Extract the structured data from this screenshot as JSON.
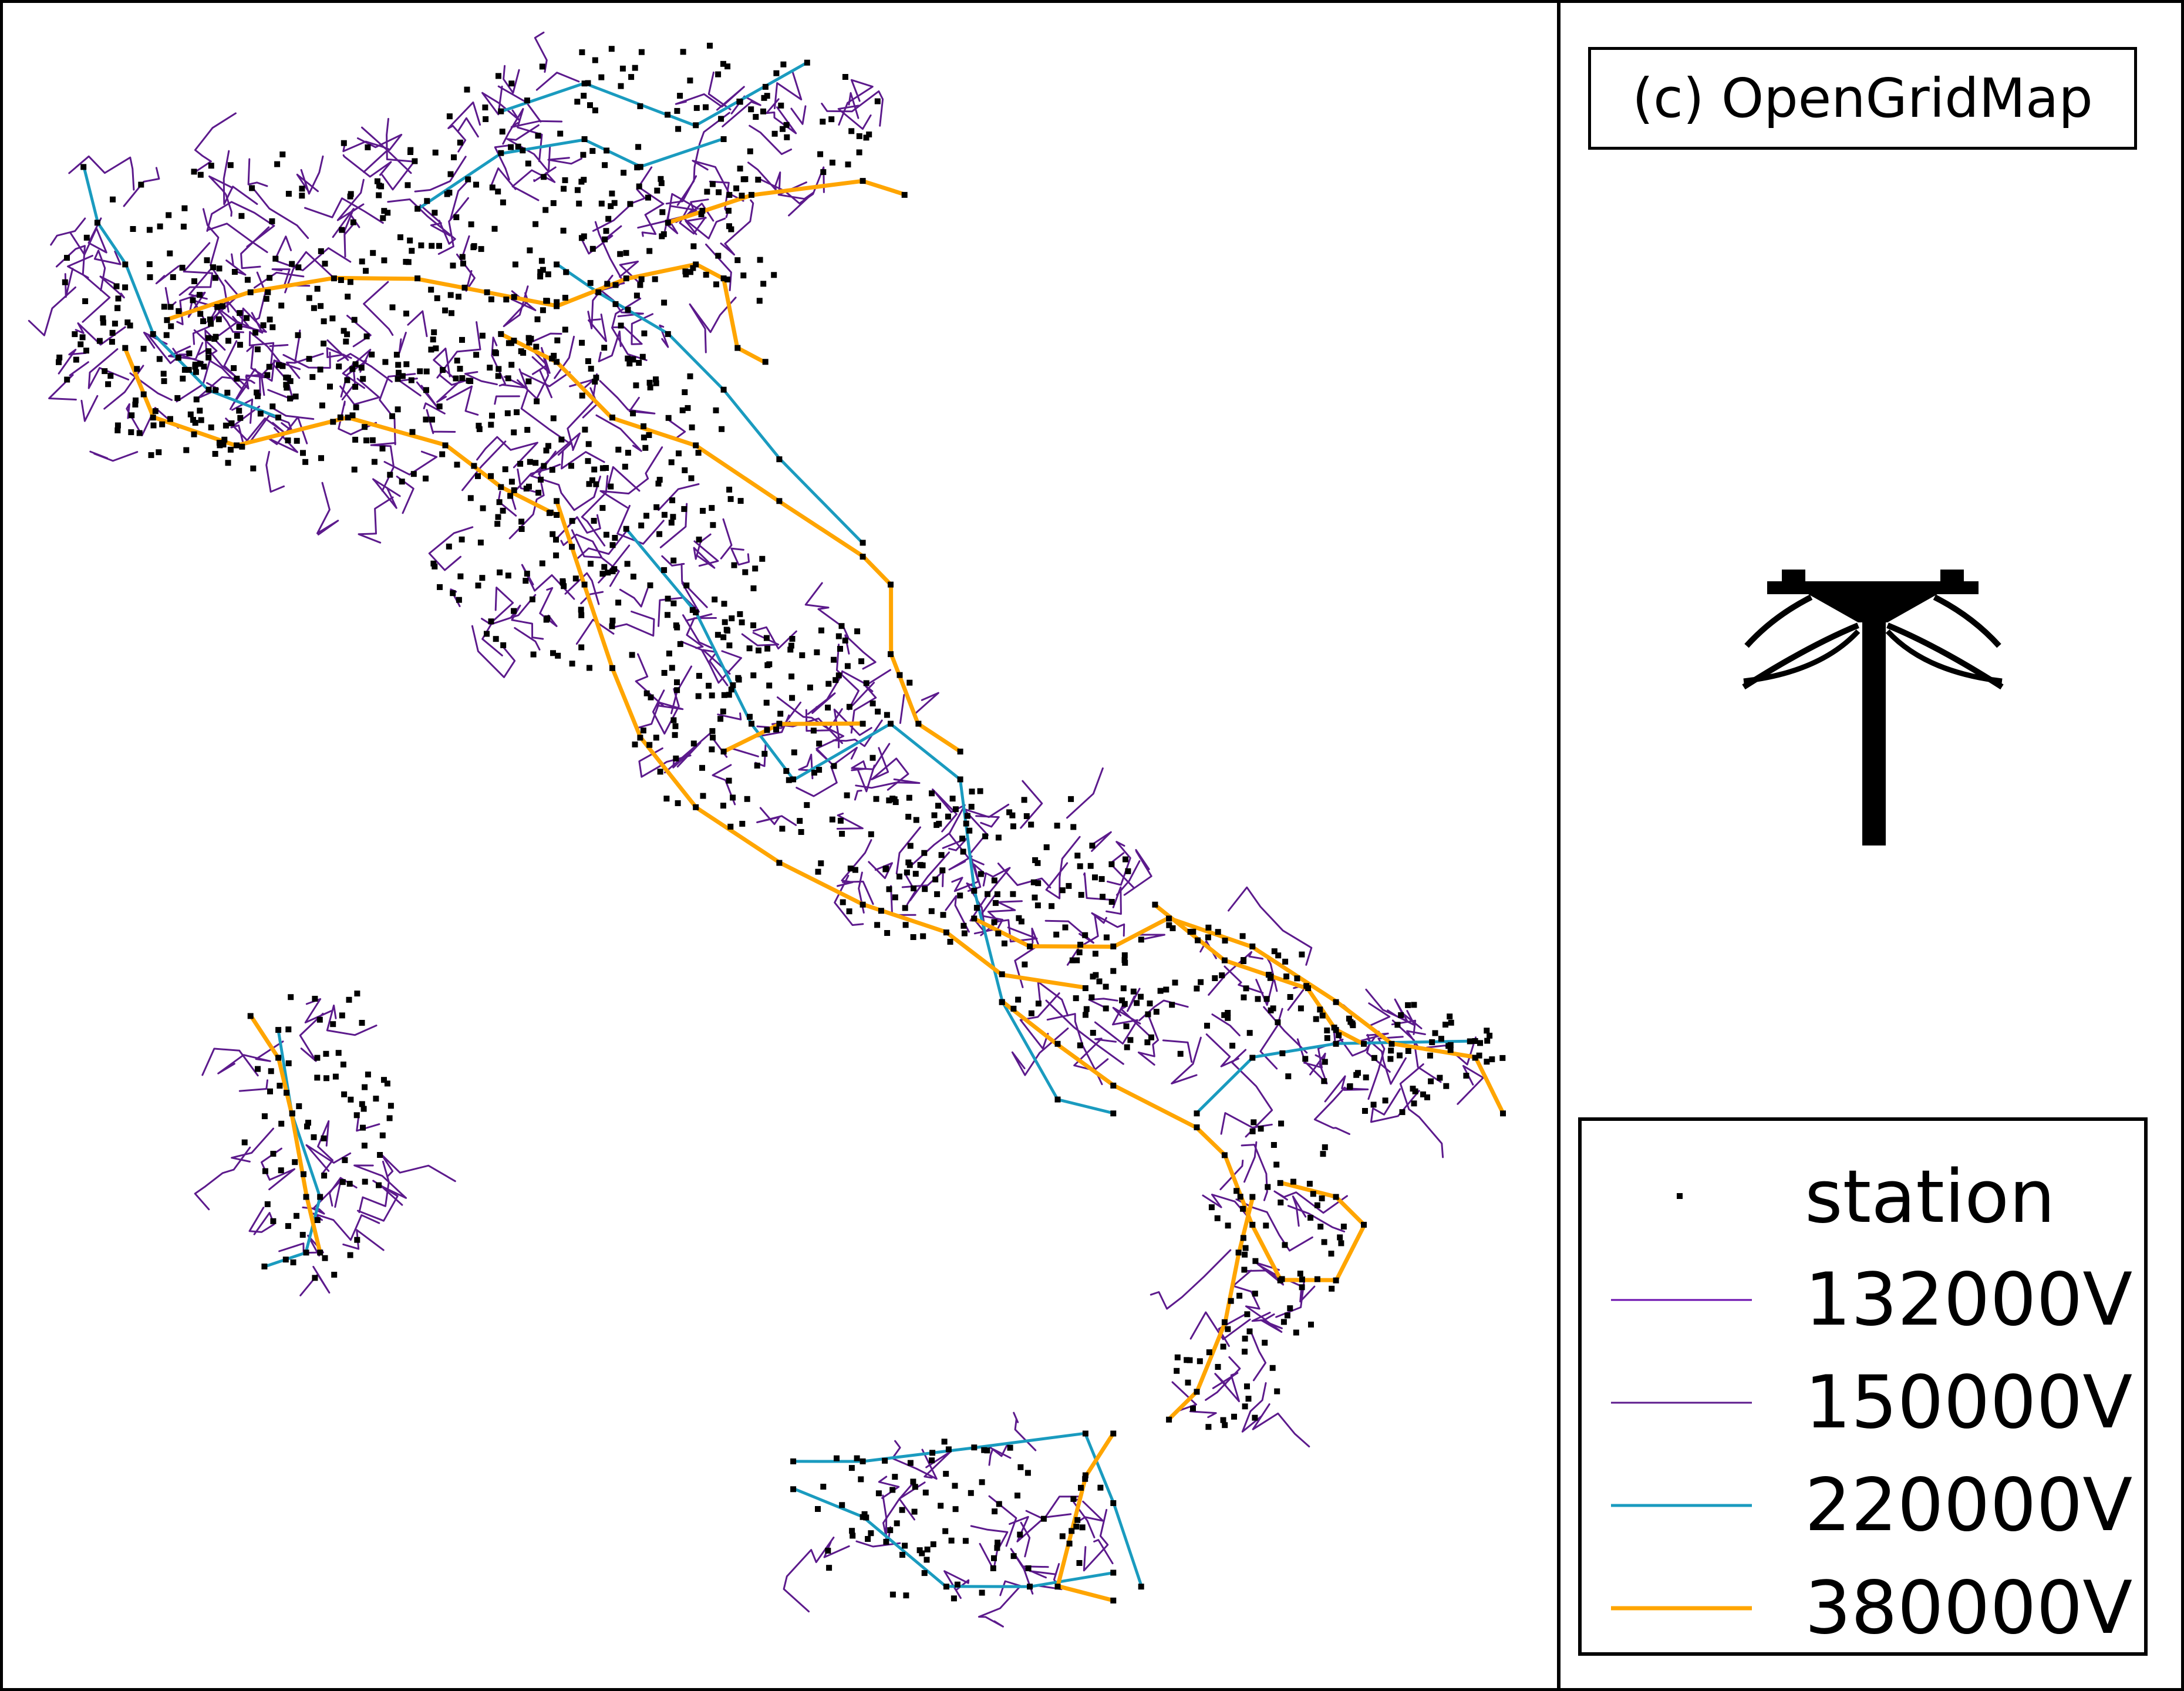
{
  "credit": "(c) OpenGridMap",
  "pylon_icon": "power-pylon-icon",
  "legend": {
    "items": [
      {
        "label": "station",
        "kind": "marker",
        "color": "#000000"
      },
      {
        "label": "132000V",
        "kind": "line",
        "color": "#6a0dad"
      },
      {
        "label": "150000V",
        "kind": "line",
        "color": "#5c1a8c"
      },
      {
        "label": "220000V",
        "kind": "line",
        "color": "#1a9bbf"
      },
      {
        "label": "380000V",
        "kind": "line",
        "color": "#ffa500"
      }
    ]
  },
  "map": {
    "region": "Italy",
    "colors": {
      "station": "#000000",
      "v132": "#6a0dad",
      "v150": "#5c1a8c",
      "v220": "#1a9bbf",
      "v380": "#ffa500"
    }
  }
}
